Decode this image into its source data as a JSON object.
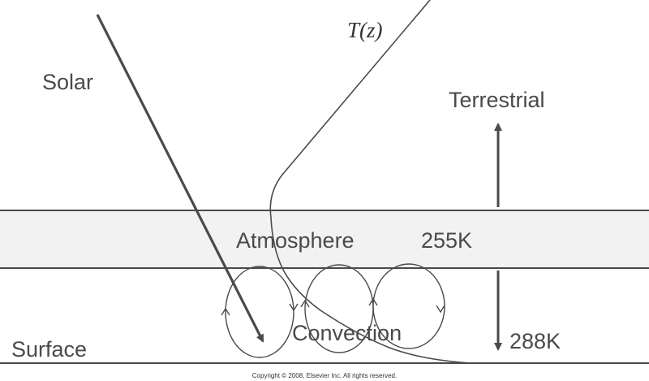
{
  "labels": {
    "solar": "Solar",
    "temperature_profile": "T(z)",
    "terrestrial": "Terrestrial",
    "atmosphere": "Atmosphere",
    "atmosphere_temperature": "255K",
    "convection": "Convection",
    "surface": "Surface",
    "surface_temperature": "288K",
    "copyright": "Copyright © 2008, Elsevier Inc. All rights reserved."
  },
  "colors": {
    "line": "#4a4a4a",
    "atmosphere_band": "#f2f2f2",
    "text": "#4a4a4a"
  },
  "icons": {
    "solar_arrow": "arrow-down-right-icon",
    "terrestrial_arrow": "arrow-up-icon",
    "surface_arrow": "arrow-down-icon"
  }
}
